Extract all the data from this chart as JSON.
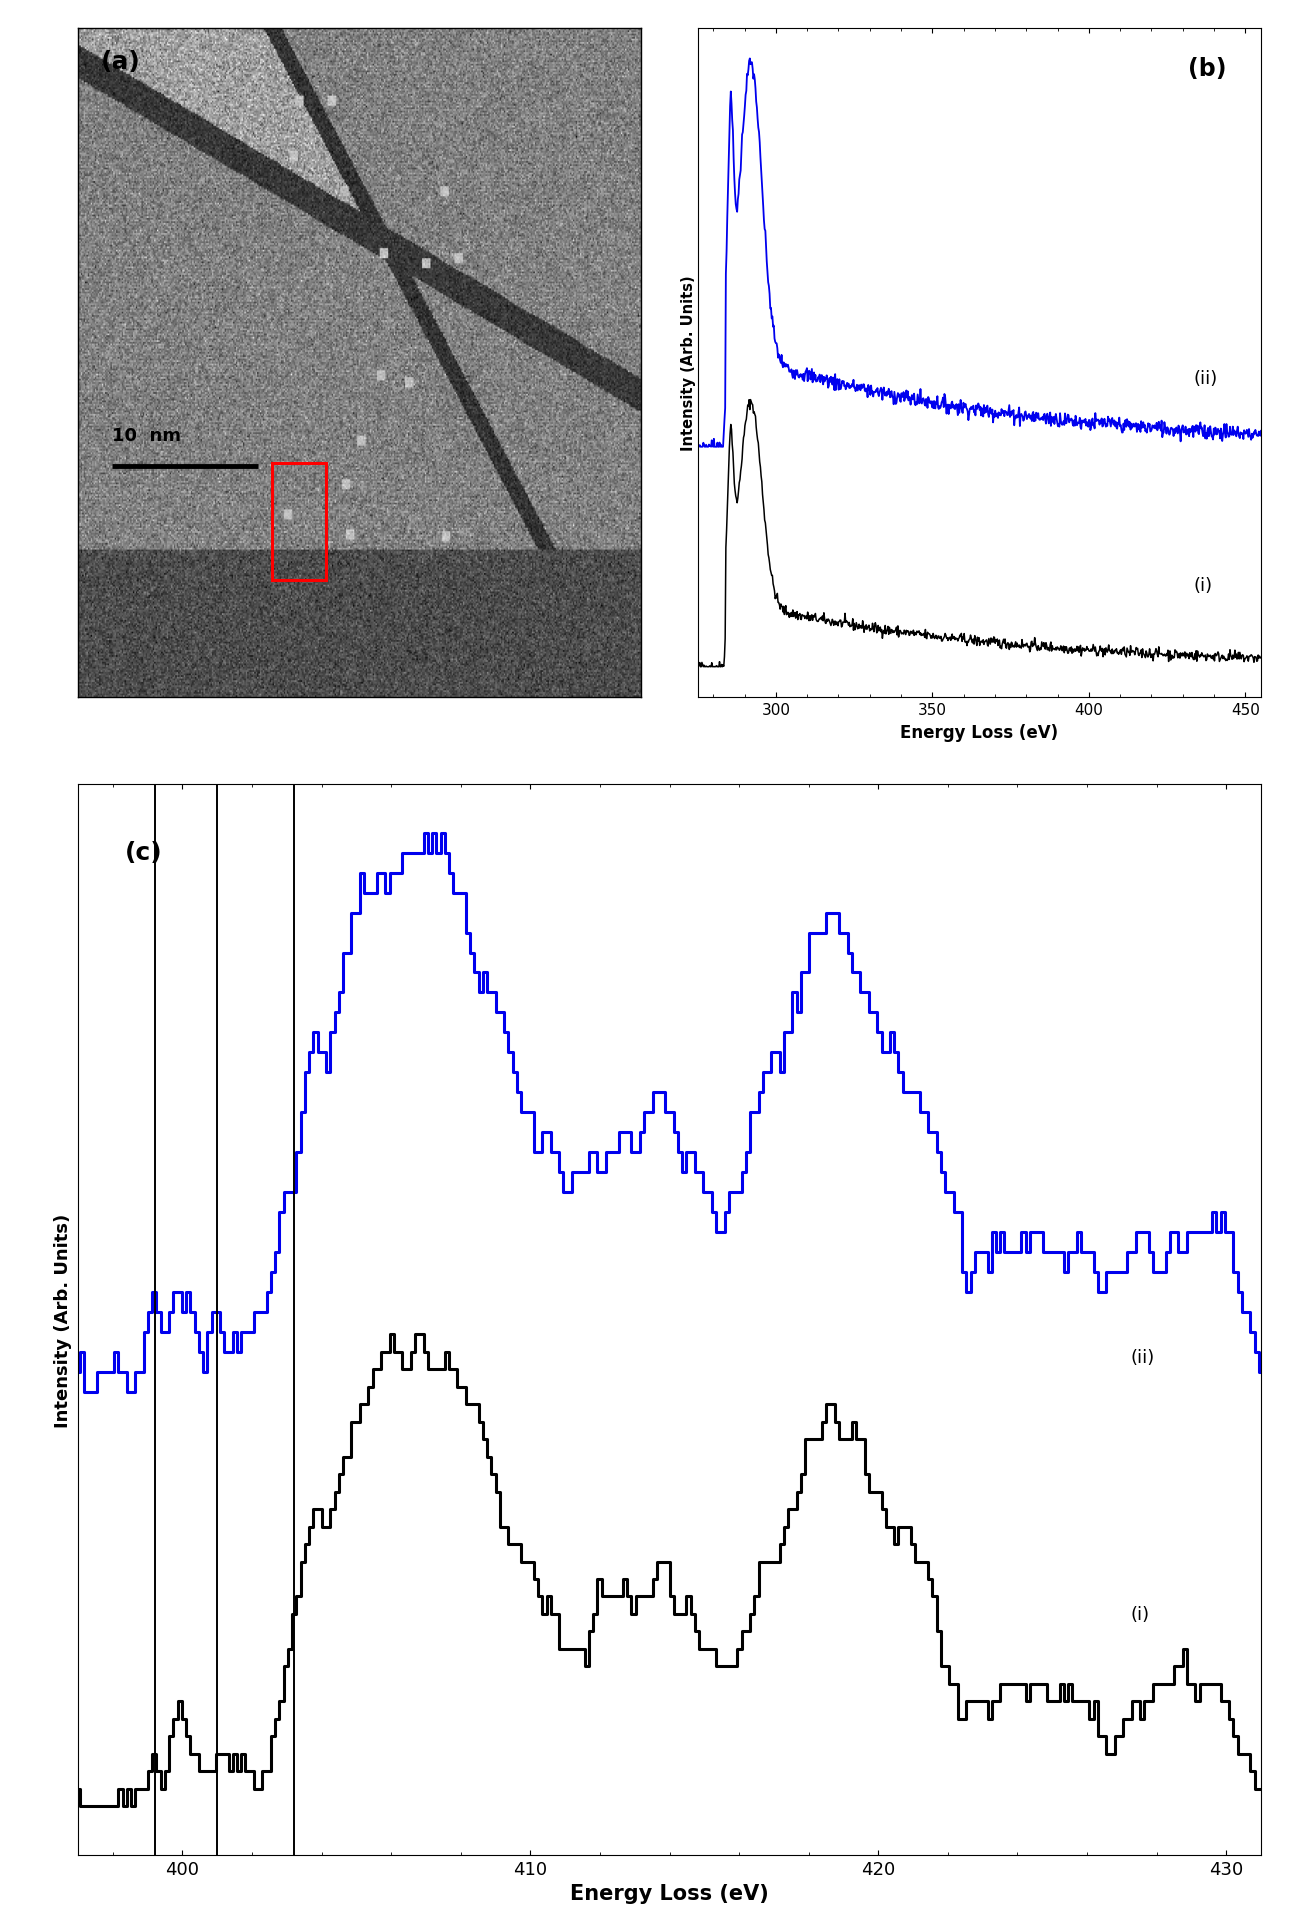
{
  "panel_b": {
    "xlabel": "Energy Loss (eV)",
    "ylabel": "Intensity (Arb. Units)",
    "label": "(b)",
    "xlim": [
      275,
      455
    ],
    "xticks": [
      300,
      350,
      400,
      450
    ],
    "label_i": "(i)",
    "label_ii": "(ii)"
  },
  "panel_c": {
    "xlabel": "Energy Loss (eV)",
    "ylabel": "Intensity (Arb. Units)",
    "label": "(c)",
    "xlim": [
      397,
      431
    ],
    "xticks": [
      400,
      410,
      420,
      430
    ],
    "vlines": [
      399.2,
      401.0,
      403.2
    ],
    "label_i": "(i)",
    "label_ii": "(ii)"
  },
  "colors": {
    "black": "#000000",
    "blue": "#0000EE"
  }
}
